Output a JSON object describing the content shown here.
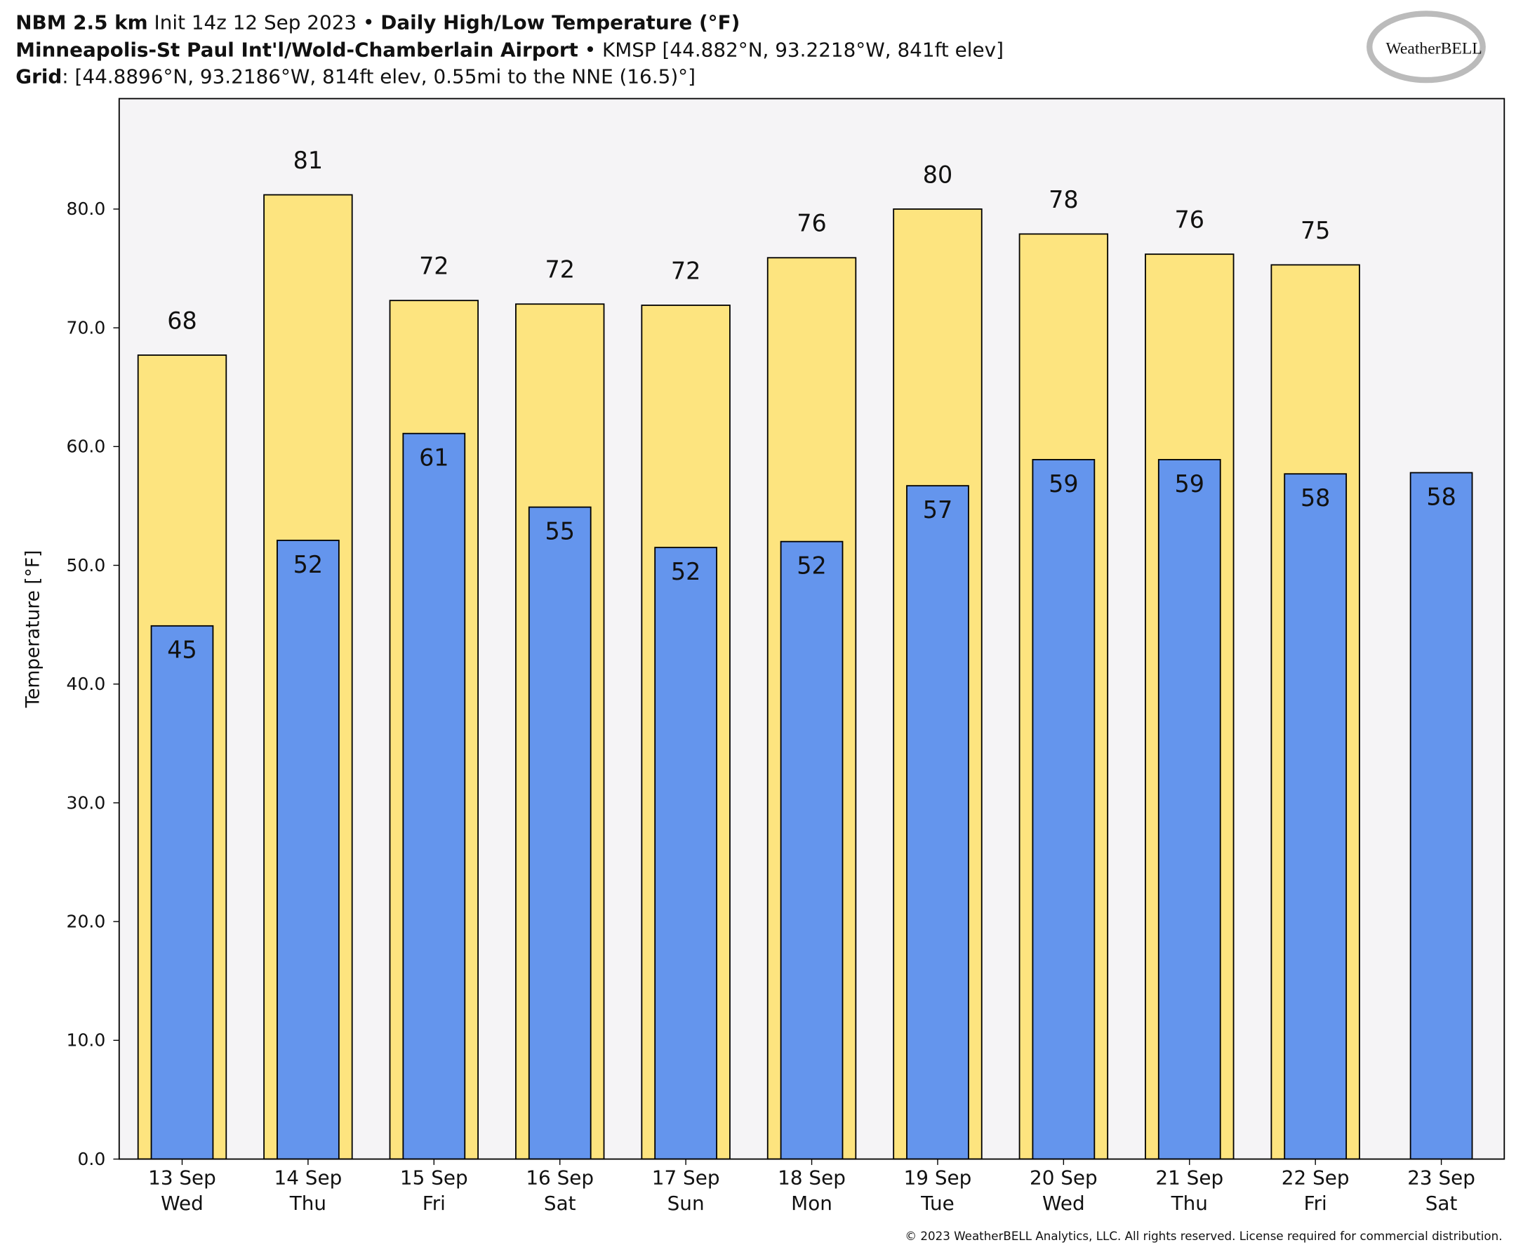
{
  "header": {
    "model": "NBM 2.5 km",
    "init": "Init 14z 12 Sep 2023",
    "separator": "•",
    "product": "Daily High/Low Temperature (°F)",
    "location": "Minneapolis-St Paul Int'l/Wold-Chamberlain Airport",
    "station": "• KMSP [44.882°N, 93.2218°W, 841ft elev]",
    "grid_label": "Grid",
    "grid_info": ": [44.8896°N, 93.2186°W, 814ft elev, 0.55mi to the NNE (16.5)°]",
    "logo": "WeatherBELL"
  },
  "footer": "© 2023 WeatherBELL Analytics, LLC. All rights reserved. License required for commercial distribution.",
  "chart_data": {
    "type": "bar",
    "y_label": "Temperature [°F]",
    "categories": [
      [
        "13 Sep",
        "Wed"
      ],
      [
        "14 Sep",
        "Thu"
      ],
      [
        "15 Sep",
        "Fri"
      ],
      [
        "16 Sep",
        "Sat"
      ],
      [
        "17 Sep",
        "Sun"
      ],
      [
        "18 Sep",
        "Mon"
      ],
      [
        "19 Sep",
        "Tue"
      ],
      [
        "20 Sep",
        "Wed"
      ],
      [
        "21 Sep",
        "Thu"
      ],
      [
        "22 Sep",
        "Fri"
      ],
      [
        "23 Sep",
        "Sat"
      ]
    ],
    "series": [
      {
        "color": "#fde47f",
        "values": [
          67.7,
          81.2,
          72.3,
          72.0,
          71.9,
          75.9,
          80.0,
          77.9,
          76.2,
          75.3,
          null
        ],
        "value_labels": [
          "68",
          "81",
          "72",
          "72",
          "72",
          "76",
          "80",
          "78",
          "76",
          "75",
          null
        ]
      },
      {
        "color": "#6495ed",
        "values": [
          44.9,
          52.1,
          61.1,
          54.9,
          51.5,
          52.0,
          56.7,
          58.9,
          58.9,
          57.7,
          57.8
        ],
        "value_labels": [
          "45",
          "52",
          "61",
          "55",
          "52",
          "52",
          "57",
          "59",
          "59",
          "58",
          "58"
        ]
      }
    ],
    "ylim": [
      0,
      89.3
    ],
    "yticks": [
      {
        "value": 0,
        "label": "0.0"
      },
      {
        "value": 10,
        "label": "10.0"
      },
      {
        "value": 20,
        "label": "20.0"
      },
      {
        "value": 30,
        "label": "30.0"
      },
      {
        "value": 40,
        "label": "40.0"
      },
      {
        "value": 50,
        "label": "50.0"
      },
      {
        "value": 60,
        "label": "60.0"
      },
      {
        "value": 70,
        "label": "70.0"
      },
      {
        "value": 80,
        "label": "80.0"
      }
    ],
    "background": "#f5f4f6"
  }
}
